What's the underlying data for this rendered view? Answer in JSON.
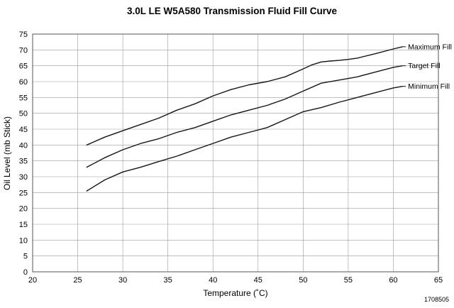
{
  "chart_data": {
    "type": "line",
    "title": "3.0L LE W5A580 Transmission Fluid Fill Curve",
    "xlabel": "Temperature (˚C)",
    "ylabel": "Oil Level (mb Stick)",
    "figure_number": "1708505",
    "xlim": [
      20,
      65
    ],
    "ylim": [
      0,
      75
    ],
    "xticks": [
      20,
      25,
      30,
      35,
      40,
      45,
      50,
      55,
      60,
      65
    ],
    "yticks": [
      0,
      5,
      10,
      15,
      20,
      25,
      30,
      35,
      40,
      45,
      50,
      55,
      60,
      65,
      70,
      75
    ],
    "grid": true,
    "legend_position": "end-of-line-labels",
    "colors": {
      "line": "#161616",
      "grid": "#9b9b9b",
      "border": "#555555"
    },
    "series": [
      {
        "name": "Maximum Fill",
        "points": [
          [
            26,
            40
          ],
          [
            28,
            42.5
          ],
          [
            30,
            44.5
          ],
          [
            32,
            46.5
          ],
          [
            34,
            48.5
          ],
          [
            36,
            51
          ],
          [
            38,
            53
          ],
          [
            40,
            55.5
          ],
          [
            42,
            57.5
          ],
          [
            44,
            59
          ],
          [
            46,
            60
          ],
          [
            48,
            61.5
          ],
          [
            50,
            64
          ],
          [
            51,
            65.3
          ],
          [
            52,
            66.2
          ],
          [
            53,
            66.5
          ],
          [
            54,
            66.7
          ],
          [
            55,
            67
          ],
          [
            56,
            67.4
          ],
          [
            58,
            68.8
          ],
          [
            60,
            70.3
          ],
          [
            61,
            71
          ]
        ]
      },
      {
        "name": "Target Fill",
        "points": [
          [
            26,
            33
          ],
          [
            28,
            36
          ],
          [
            30,
            38.5
          ],
          [
            32,
            40.5
          ],
          [
            34,
            42
          ],
          [
            36,
            44
          ],
          [
            38,
            45.5
          ],
          [
            40,
            47.5
          ],
          [
            42,
            49.5
          ],
          [
            44,
            51
          ],
          [
            46,
            52.5
          ],
          [
            48,
            54.5
          ],
          [
            50,
            57
          ],
          [
            52,
            59.5
          ],
          [
            54,
            60.5
          ],
          [
            56,
            61.5
          ],
          [
            58,
            63
          ],
          [
            60,
            64.5
          ],
          [
            61,
            65
          ]
        ]
      },
      {
        "name": "Minimum Fill",
        "points": [
          [
            26,
            25.5
          ],
          [
            28,
            29
          ],
          [
            30,
            31.5
          ],
          [
            32,
            33
          ],
          [
            34,
            34.8
          ],
          [
            36,
            36.5
          ],
          [
            38,
            38.5
          ],
          [
            40,
            40.5
          ],
          [
            42,
            42.5
          ],
          [
            44,
            44
          ],
          [
            46,
            45.5
          ],
          [
            48,
            48
          ],
          [
            50,
            50.5
          ],
          [
            52,
            51.8
          ],
          [
            54,
            53.5
          ],
          [
            56,
            55
          ],
          [
            58,
            56.5
          ],
          [
            60,
            58
          ],
          [
            61,
            58.5
          ]
        ]
      }
    ]
  }
}
